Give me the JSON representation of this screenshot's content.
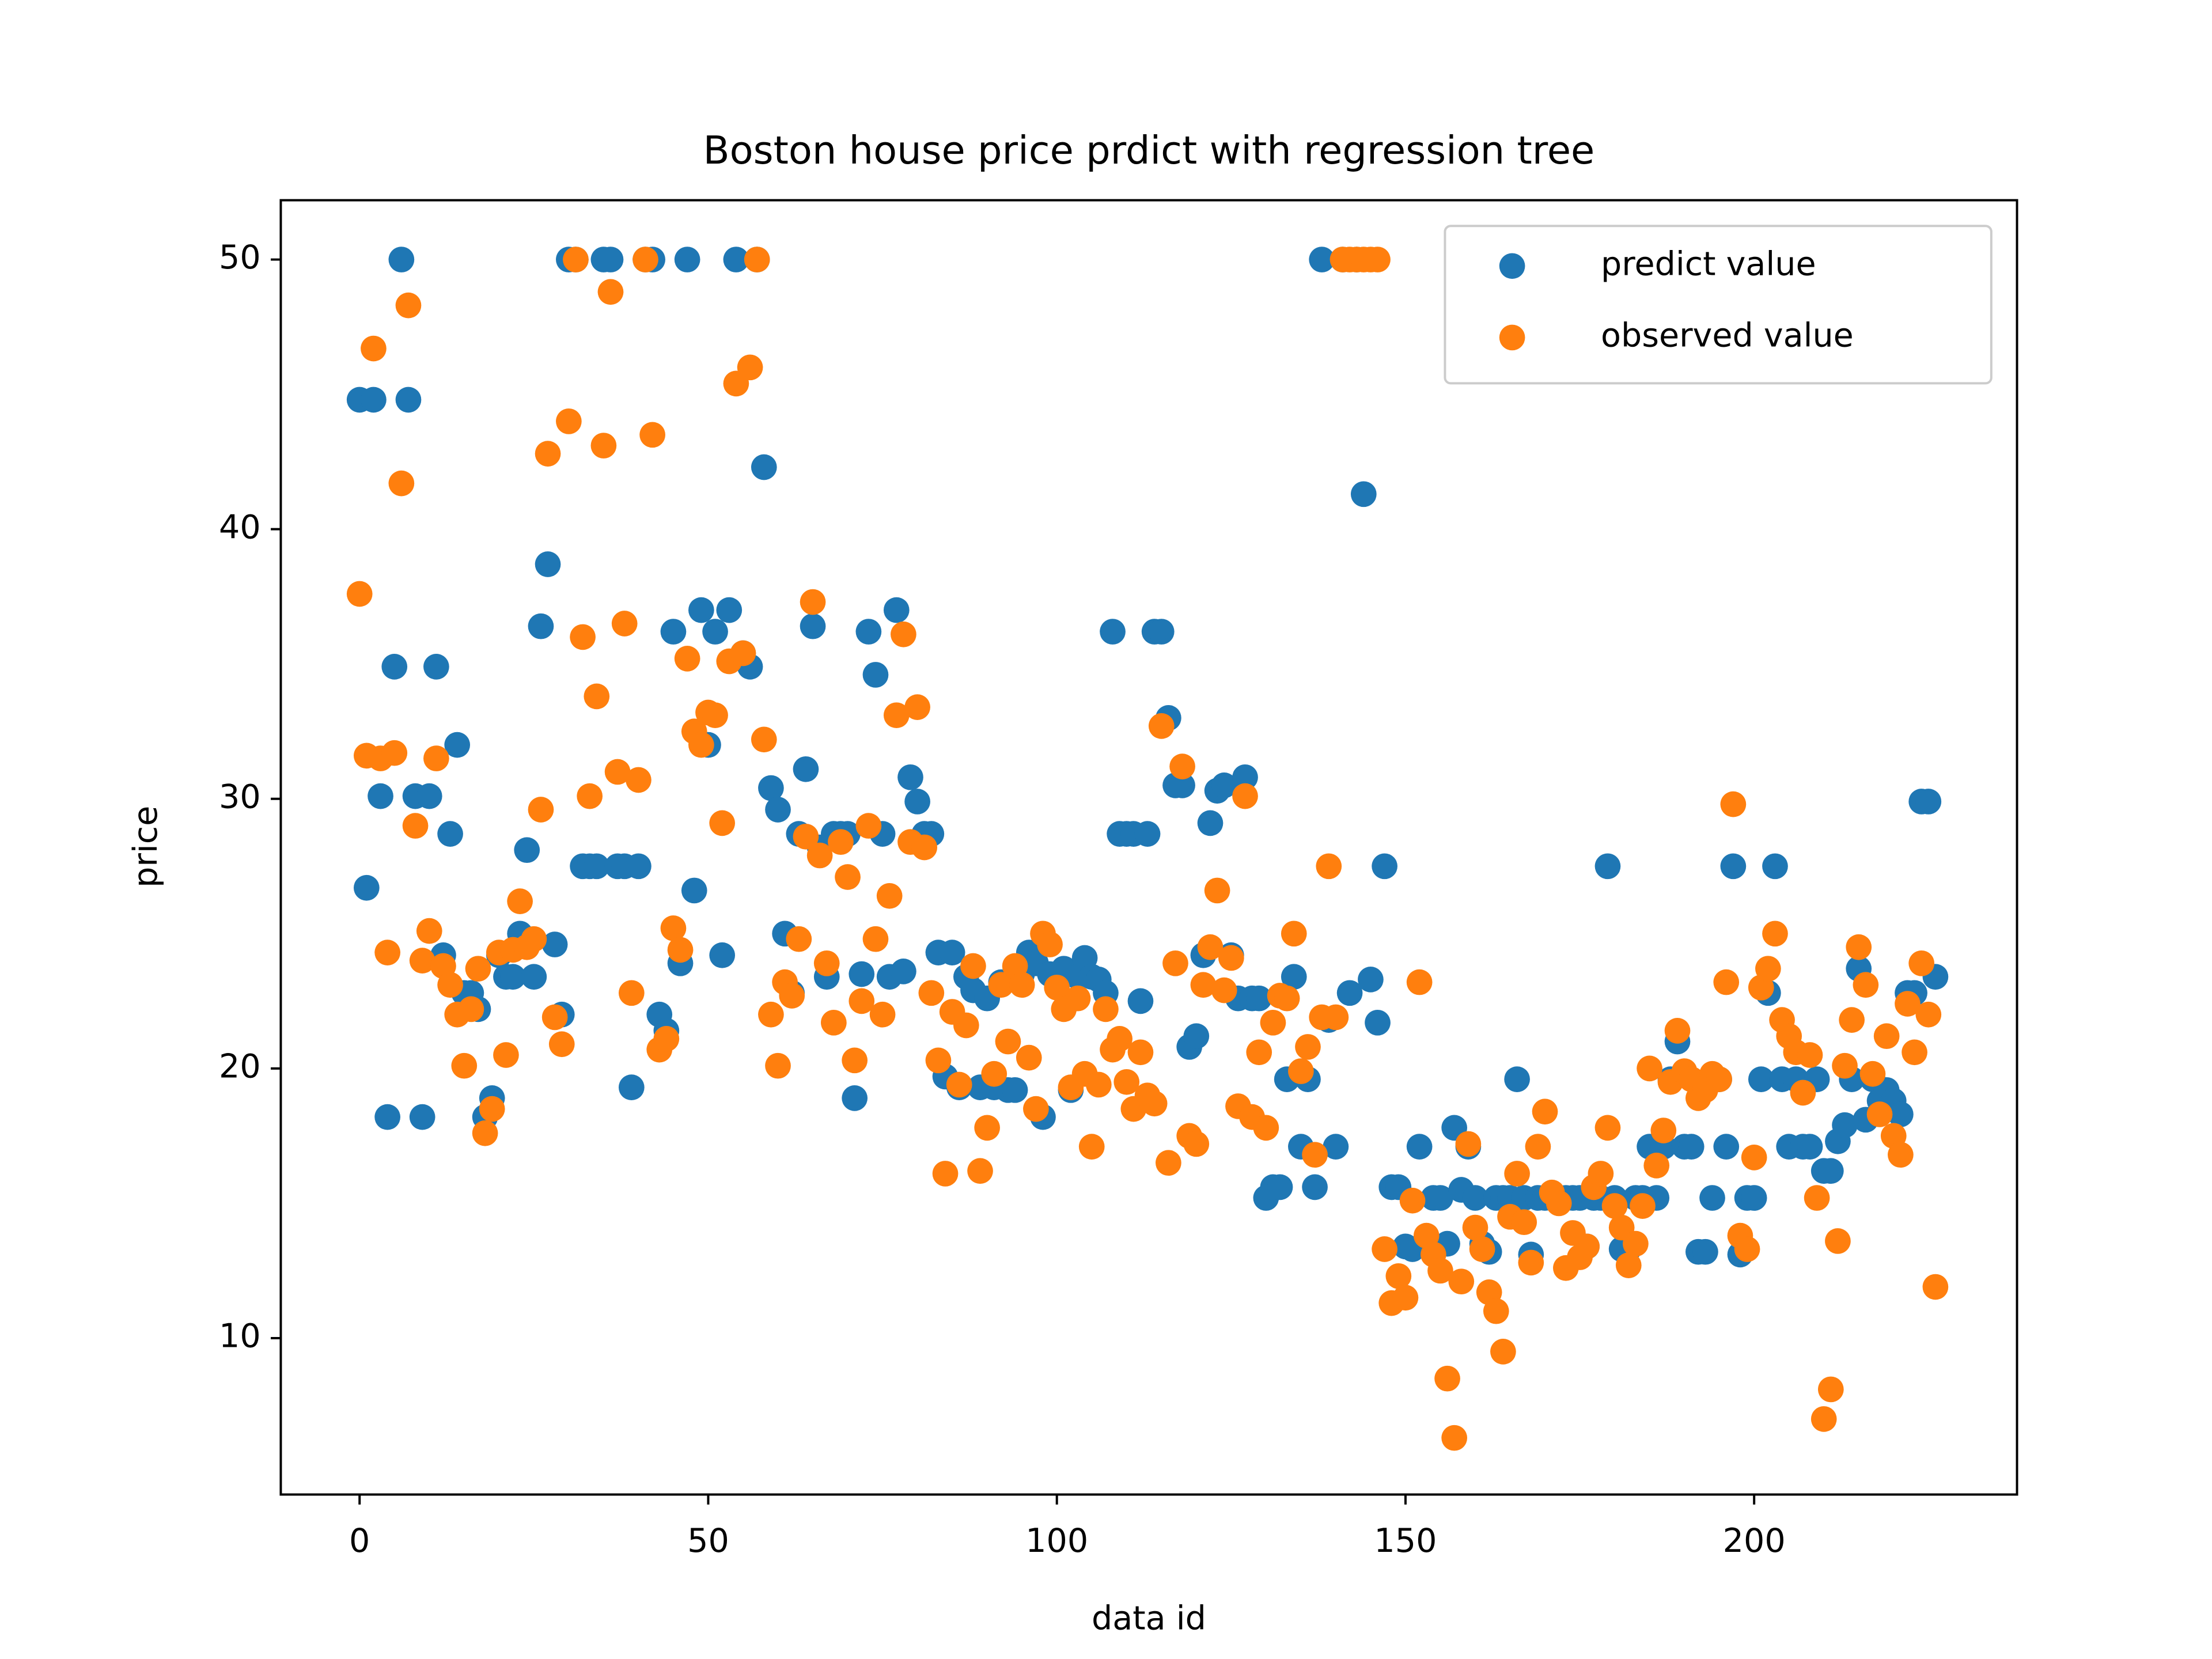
{
  "chart_data": {
    "type": "scatter",
    "title": "Boston house price prdict with regression tree",
    "x_label": "data id",
    "y_label": "price",
    "xlim": [
      -11.3,
      237.7
    ],
    "ylim": [
      4.2,
      52.2
    ],
    "xticks": [
      0,
      50,
      100,
      150,
      200
    ],
    "yticks": [
      10,
      20,
      30,
      40,
      50
    ],
    "legend": "upper right",
    "x": [
      0,
      1,
      2,
      3,
      4,
      5,
      6,
      7,
      8,
      9,
      10,
      11,
      12,
      13,
      14,
      15,
      16,
      17,
      18,
      19,
      20,
      21,
      22,
      23,
      24,
      25,
      26,
      27,
      28,
      29,
      30,
      31,
      32,
      33,
      34,
      35,
      36,
      37,
      38,
      39,
      40,
      41,
      42,
      43,
      44,
      45,
      46,
      47,
      48,
      49,
      50,
      51,
      52,
      53,
      54,
      55,
      56,
      57,
      58,
      59,
      60,
      61,
      62,
      63,
      64,
      65,
      66,
      67,
      68,
      69,
      70,
      71,
      72,
      73,
      74,
      75,
      76,
      77,
      78,
      79,
      80,
      81,
      82,
      83,
      84,
      85,
      86,
      87,
      88,
      89,
      90,
      91,
      92,
      93,
      94,
      95,
      96,
      97,
      98,
      99,
      100,
      101,
      102,
      103,
      104,
      105,
      106,
      107,
      108,
      109,
      110,
      111,
      112,
      113,
      114,
      115,
      116,
      117,
      118,
      119,
      120,
      121,
      122,
      123,
      124,
      125,
      126,
      127,
      128,
      129,
      130,
      131,
      132,
      133,
      134,
      135,
      136,
      137,
      138,
      139,
      140,
      141,
      142,
      143,
      144,
      145,
      146,
      147,
      148,
      149,
      150,
      151,
      152,
      153,
      154,
      155,
      156,
      157,
      158,
      159,
      160,
      161,
      162,
      163,
      164,
      165,
      166,
      167,
      168,
      169,
      170,
      171,
      172,
      173,
      174,
      175,
      176,
      177,
      178,
      179,
      180,
      181,
      182,
      183,
      184,
      185,
      186,
      187,
      188,
      189,
      190,
      191,
      192,
      193,
      194,
      195,
      196,
      197,
      198,
      199,
      200,
      201,
      202,
      203,
      204,
      205,
      206,
      207,
      208,
      209,
      210,
      211,
      212,
      213,
      214,
      215,
      216,
      217,
      218,
      219,
      220,
      221,
      222,
      223,
      224,
      225,
      226
    ],
    "series": [
      {
        "name": "predict value",
        "color": "#1f77b4",
        "values": [
          44.8,
          26.7,
          44.8,
          30.1,
          18.2,
          34.9,
          50,
          44.8,
          30.1,
          18.2,
          30.1,
          34.9,
          24.2,
          28.7,
          32,
          22.8,
          22.8,
          22.2,
          18.2,
          18.9,
          24.2,
          23.4,
          23.4,
          25,
          28.1,
          23.4,
          36.4,
          38.7,
          24.6,
          22,
          50,
          50,
          27.5,
          27.5,
          27.5,
          50,
          50,
          27.5,
          27.5,
          19.3,
          27.5,
          50,
          50,
          22,
          21.4,
          36.2,
          23.9,
          50,
          26.6,
          37,
          32,
          36.2,
          24.2,
          37,
          50,
          35.4,
          34.9,
          50,
          42.3,
          30.4,
          29.6,
          25,
          22.8,
          28.7,
          31.1,
          36.4,
          28.2,
          23.4,
          28.7,
          28.7,
          28.7,
          18.9,
          23.5,
          36.2,
          34.6,
          28.7,
          23.4,
          37,
          23.6,
          30.8,
          29.9,
          28.7,
          28.7,
          24.3,
          19.7,
          24.3,
          19.3,
          23.4,
          22.9,
          19.3,
          22.6,
          19.3,
          23.2,
          19.2,
          19.2,
          23.5,
          24.3,
          23.9,
          18.2,
          23.5,
          23.5,
          23.7,
          19.2,
          23.4,
          24.1,
          23.4,
          23.3,
          22.8,
          36.2,
          28.7,
          28.7,
          28.7,
          22.5,
          28.7,
          36.2,
          36.2,
          33,
          30.5,
          30.5,
          20.8,
          21.2,
          24.2,
          29.1,
          30.3,
          30.5,
          24.2,
          22.6,
          30.8,
          22.6,
          22.6,
          15.2,
          15.6,
          15.6,
          19.6,
          23.4,
          17.1,
          19.6,
          15.6,
          50,
          21.8,
          17.1,
          50,
          22.8,
          50,
          41.3,
          23.3,
          21.7,
          27.5,
          15.6,
          15.6,
          13.4,
          13.3,
          17.1,
          13.5,
          15.2,
          15.2,
          13.5,
          17.8,
          15.5,
          17.1,
          15.2,
          13.5,
          13.2,
          15.2,
          15.2,
          15.2,
          19.6,
          15.2,
          13.1,
          15.2,
          15.2,
          15.2,
          15.2,
          15.2,
          15.2,
          15.2,
          13.4,
          15.2,
          15.2,
          27.5,
          15.2,
          13.3,
          13.3,
          15.2,
          15.2,
          17.1,
          15.2,
          17.1,
          19.6,
          21,
          17.1,
          17.1,
          13.2,
          13.2,
          15.2,
          19.6,
          17.1,
          27.5,
          13.1,
          15.2,
          15.2,
          19.6,
          22.8,
          27.5,
          19.6,
          17.1,
          19.6,
          17.1,
          17.1,
          19.6,
          16.2,
          16.2,
          17.3,
          17.9,
          19.6,
          23.7,
          18.1,
          19.6,
          18.8,
          19.2,
          18.8,
          18.3,
          22.8,
          22.8,
          29.9,
          29.9,
          23.4
        ]
      },
      {
        "name": "observed value",
        "color": "#ff7f0e",
        "values": [
          37.6,
          31.6,
          46.7,
          31.5,
          24.3,
          31.7,
          41.7,
          48.3,
          29,
          24,
          25.1,
          31.5,
          23.8,
          23.1,
          22,
          20.1,
          22.2,
          23.7,
          17.6,
          18.5,
          24.3,
          20.5,
          24.4,
          26.2,
          24.5,
          24.8,
          29.6,
          42.8,
          21.9,
          20.9,
          44,
          50,
          36,
          30.1,
          33.8,
          43.1,
          48.8,
          31,
          36.5,
          22.8,
          30.7,
          50,
          43.5,
          20.7,
          21.1,
          25.2,
          24.4,
          35.2,
          32.5,
          32,
          33.2,
          33.1,
          29.1,
          35.1,
          45.4,
          35.4,
          46,
          50,
          32.2,
          22,
          20.1,
          23.2,
          22.7,
          24.8,
          28.6,
          37.3,
          27.9,
          23.9,
          21.7,
          28.4,
          27.1,
          20.3,
          22.5,
          29,
          24.8,
          22,
          26.4,
          33.1,
          36.1,
          28.4,
          33.4,
          28.2,
          22.8,
          20.3,
          16.1,
          22.1,
          19.4,
          21.6,
          23.8,
          16.2,
          17.8,
          19.8,
          23.1,
          21,
          23.8,
          23.1,
          20.4,
          18.5,
          25,
          24.6,
          23,
          22.2,
          19.3,
          22.6,
          19.8,
          17.1,
          19.4,
          22.2,
          20.7,
          21.1,
          19.5,
          18.5,
          20.6,
          19,
          18.7,
          32.7,
          16.5,
          23.9,
          31.2,
          17.5,
          17.2,
          23.1,
          24.5,
          26.6,
          22.9,
          24.1,
          18.6,
          30.1,
          18.2,
          20.6,
          17.8,
          21.7,
          22.7,
          22.6,
          25,
          19.9,
          20.8,
          16.8,
          21.9,
          27.5,
          21.9,
          50,
          50,
          50,
          50,
          50,
          50,
          13.3,
          11.3,
          12.3,
          11.5,
          15.1,
          23.2,
          13.8,
          13.1,
          12.5,
          8.5,
          6.3,
          12.1,
          17.2,
          14.1,
          13.3,
          11.7,
          11,
          9.5,
          14.5,
          16.1,
          14.3,
          12.8,
          17.1,
          18.4,
          15.4,
          15,
          12.6,
          13.9,
          13,
          13.4,
          15.6,
          16.1,
          17.8,
          14.9,
          14.1,
          12.7,
          13.5,
          14.9,
          20,
          16.4,
          17.7,
          19.5,
          21.4,
          19.9,
          19.6,
          18.9,
          19.2,
          19.8,
          19.6,
          23.2,
          29.8,
          13.8,
          13.3,
          16.7,
          23,
          23.7,
          25,
          21.8,
          21.2,
          20.6,
          19.1,
          20.5,
          15.2,
          7,
          8.1,
          13.6,
          20.1,
          21.8,
          24.5,
          23.1,
          19.8,
          18.3,
          21.2,
          17.5,
          16.8,
          22.4,
          20.6,
          23.9,
          22,
          11.9
        ]
      }
    ]
  }
}
